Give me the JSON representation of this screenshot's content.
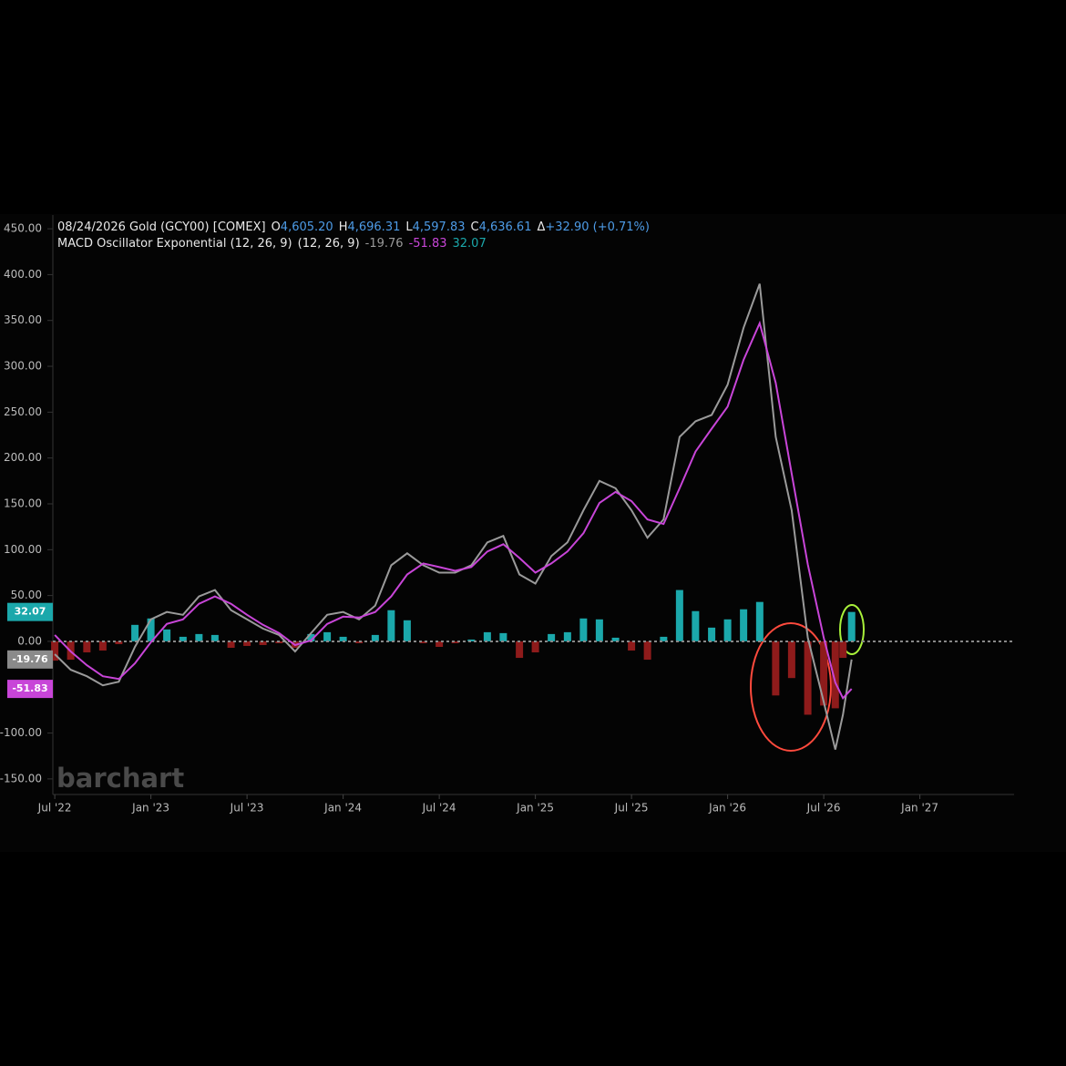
{
  "chart_data": {
    "type": "line",
    "title": "08/24/2026 Gold (GCY00) [COMEX]",
    "quote": [
      {
        "key": "O",
        "value": "4,605.20"
      },
      {
        "key": "H",
        "value": "4,696.31"
      },
      {
        "key": "L",
        "value": "4,597.83"
      },
      {
        "key": "C",
        "value": "4,636.61"
      },
      {
        "key": "Δ",
        "value": "+32.90 (+0.71%)"
      }
    ],
    "subtitle": "MACD Oscillator Exponential (12, 26, 9)",
    "study_params": "(12, 26, 9)",
    "watermark": "barchart",
    "x": [
      2022.5,
      2022.583,
      2022.667,
      2022.75,
      2022.833,
      2022.917,
      2023,
      2023.083,
      2023.167,
      2023.25,
      2023.333,
      2023.417,
      2023.5,
      2023.583,
      2023.667,
      2023.75,
      2023.833,
      2023.917,
      2024,
      2024.083,
      2024.167,
      2024.25,
      2024.333,
      2024.417,
      2024.5,
      2024.583,
      2024.667,
      2024.75,
      2024.833,
      2024.917,
      2025,
      2025.083,
      2025.167,
      2025.25,
      2025.333,
      2025.417,
      2025.5,
      2025.583,
      2025.667,
      2025.75,
      2025.833,
      2025.917,
      2026,
      2026.083,
      2026.167,
      2026.25,
      2026.333,
      2026.417,
      2026.5,
      2026.56,
      2026.6,
      2026.645
    ],
    "series": [
      {
        "type": "line",
        "color": "#9a9a9a",
        "values": [
          -14,
          -31,
          -38,
          -48,
          -44,
          -6,
          24,
          32,
          29,
          49,
          56,
          34,
          24,
          14,
          7,
          -11,
          9,
          29,
          32,
          24,
          39,
          83,
          96,
          83,
          75,
          75,
          83,
          108,
          115,
          73,
          63,
          93,
          108,
          143,
          175,
          167,
          143,
          113,
          133,
          223,
          240,
          247,
          280,
          342,
          390,
          223,
          143,
          4,
          -66,
          -118,
          -80,
          -19.76
        ]
      },
      {
        "type": "line",
        "color": "#c845d8",
        "values": [
          7,
          -11,
          -26,
          -38,
          -41,
          -24,
          -1,
          19,
          24,
          41,
          49,
          41,
          29,
          18,
          9,
          -4,
          1,
          19,
          27,
          26,
          32,
          49,
          73,
          85,
          81,
          77,
          81,
          98,
          106,
          91,
          75,
          85,
          98,
          118,
          151,
          163,
          153,
          133,
          128,
          167,
          207,
          232,
          256,
          307,
          347,
          282,
          183,
          84,
          4,
          -45,
          -62,
          -51.83
        ]
      },
      {
        "type": "bar",
        "color": "#1ba8ab",
        "negative_color": "#8e1b1b",
        "values": [
          -21,
          -20,
          -12,
          -10,
          -3,
          18,
          25,
          13,
          5,
          8,
          7,
          -7,
          -5,
          -4,
          -2,
          -7,
          8,
          10,
          5,
          -2,
          7,
          34,
          23,
          -2,
          -6,
          -2,
          2,
          10,
          9,
          -18,
          -12,
          8,
          10,
          25,
          24,
          4,
          -10,
          -20,
          5,
          56,
          33,
          15,
          24,
          35,
          43,
          -59,
          -40,
          -80,
          -70,
          -73,
          -18,
          32.07
        ]
      }
    ],
    "xlim": [
      2022.49,
      2027.49
    ],
    "xticks": [
      {
        "value": 2022.5,
        "label": "Jul '22"
      },
      {
        "value": 2023,
        "label": "Jan '23"
      },
      {
        "value": 2023.5,
        "label": "Jul '23"
      },
      {
        "value": 2024,
        "label": "Jan '24"
      },
      {
        "value": 2024.5,
        "label": "Jul '24"
      },
      {
        "value": 2025,
        "label": "Jan '25"
      },
      {
        "value": 2025.5,
        "label": "Jul '25"
      },
      {
        "value": 2026,
        "label": "Jan '26"
      },
      {
        "value": 2026.5,
        "label": "Jul '26"
      },
      {
        "value": 2027,
        "label": "Jan '27"
      }
    ],
    "ylim": [
      -167,
      465
    ],
    "yticks": [
      {
        "value": 450,
        "label": "450.00"
      },
      {
        "value": 400,
        "label": "400.00"
      },
      {
        "value": 350,
        "label": "350.00"
      },
      {
        "value": 300,
        "label": "300.00"
      },
      {
        "value": 250,
        "label": "250.00"
      },
      {
        "value": 200,
        "label": "200.00"
      },
      {
        "value": 150,
        "label": "150.00"
      },
      {
        "value": 100,
        "label": "100.00"
      },
      {
        "value": 50,
        "label": "50.00"
      },
      {
        "value": 0,
        "label": "0.00"
      },
      {
        "value": -100,
        "label": "-100.00"
      },
      {
        "value": -150,
        "label": "-150.00"
      }
    ]
  }
}
